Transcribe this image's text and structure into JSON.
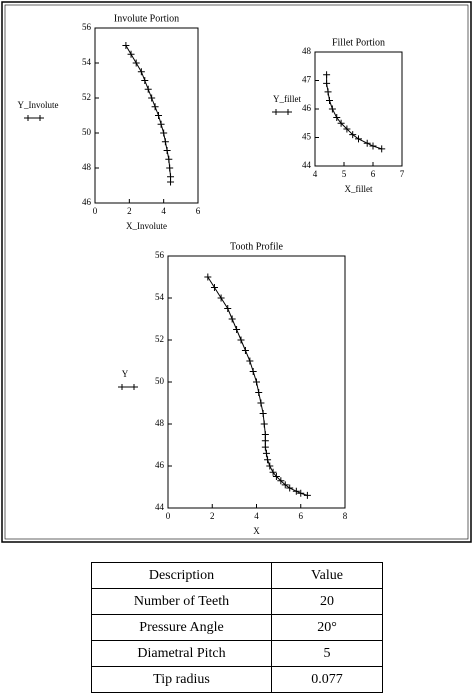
{
  "chart_data": [
    {
      "type": "line",
      "marker": "+",
      "color": "#000000",
      "title": "Involute Portion",
      "x_label": "X_Involute",
      "y_label": "Y_Involute",
      "x": [
        1.8,
        2.1,
        2.4,
        2.7,
        2.9,
        3.1,
        3.3,
        3.5,
        3.7,
        3.85,
        4.0,
        4.1,
        4.2,
        4.3,
        4.35,
        4.4,
        4.4
      ],
      "values": [
        55,
        54.5,
        54.0,
        53.5,
        53.0,
        52.5,
        52.0,
        51.5,
        51.0,
        50.5,
        50.0,
        49.5,
        49.0,
        48.5,
        48.0,
        47.5,
        47.2
      ],
      "xlim": [
        0,
        6
      ],
      "xticks": [
        0,
        2,
        4,
        6
      ],
      "ylim": [
        46,
        56
      ],
      "yticks": [
        46,
        48,
        50,
        52,
        54,
        56
      ]
    },
    {
      "type": "line",
      "marker": "+",
      "color": "#000000",
      "title": "Fillet Portion",
      "x_label": "X_fillet",
      "y_label": "Y_fillet",
      "x": [
        4.4,
        4.4,
        4.45,
        4.5,
        4.6,
        4.75,
        4.9,
        5.1,
        5.3,
        5.5,
        5.8,
        6.0,
        6.3
      ],
      "values": [
        47.2,
        46.9,
        46.6,
        46.3,
        46.0,
        45.7,
        45.5,
        45.3,
        45.1,
        44.95,
        44.8,
        44.7,
        44.6
      ],
      "xlim": [
        4,
        7
      ],
      "xticks": [
        4,
        5,
        6,
        7
      ],
      "ylim": [
        44,
        48
      ],
      "yticks": [
        44,
        45,
        46,
        47,
        48
      ]
    },
    {
      "type": "line",
      "marker": "+",
      "color": "#000000",
      "title": "Tooth Profile",
      "x_label": "X",
      "y_label": "Y",
      "x": [
        1.8,
        2.1,
        2.4,
        2.7,
        2.9,
        3.1,
        3.3,
        3.5,
        3.7,
        3.85,
        4.0,
        4.1,
        4.2,
        4.3,
        4.35,
        4.4,
        4.4,
        4.4,
        4.45,
        4.5,
        4.6,
        4.75,
        4.9,
        5.1,
        5.3,
        5.5,
        5.8,
        6.0,
        6.3
      ],
      "values": [
        55,
        54.5,
        54.0,
        53.5,
        53.0,
        52.5,
        52.0,
        51.5,
        51.0,
        50.5,
        50.0,
        49.5,
        49.0,
        48.5,
        48.0,
        47.5,
        47.2,
        46.9,
        46.6,
        46.3,
        46.0,
        45.7,
        45.5,
        45.3,
        45.1,
        44.95,
        44.8,
        44.7,
        44.6
      ],
      "xlim": [
        0,
        8
      ],
      "xticks": [
        0,
        2,
        4,
        6,
        8
      ],
      "ylim": [
        44,
        56
      ],
      "yticks": [
        44,
        46,
        48,
        50,
        52,
        54,
        56
      ]
    }
  ],
  "table": {
    "header": [
      "Description",
      "Value"
    ],
    "rows": [
      [
        "Number of Teeth",
        "20"
      ],
      [
        "Pressure Angle",
        "20°"
      ],
      [
        "Diametral Pitch",
        "5"
      ],
      [
        "Tip radius",
        "0.077"
      ]
    ]
  }
}
